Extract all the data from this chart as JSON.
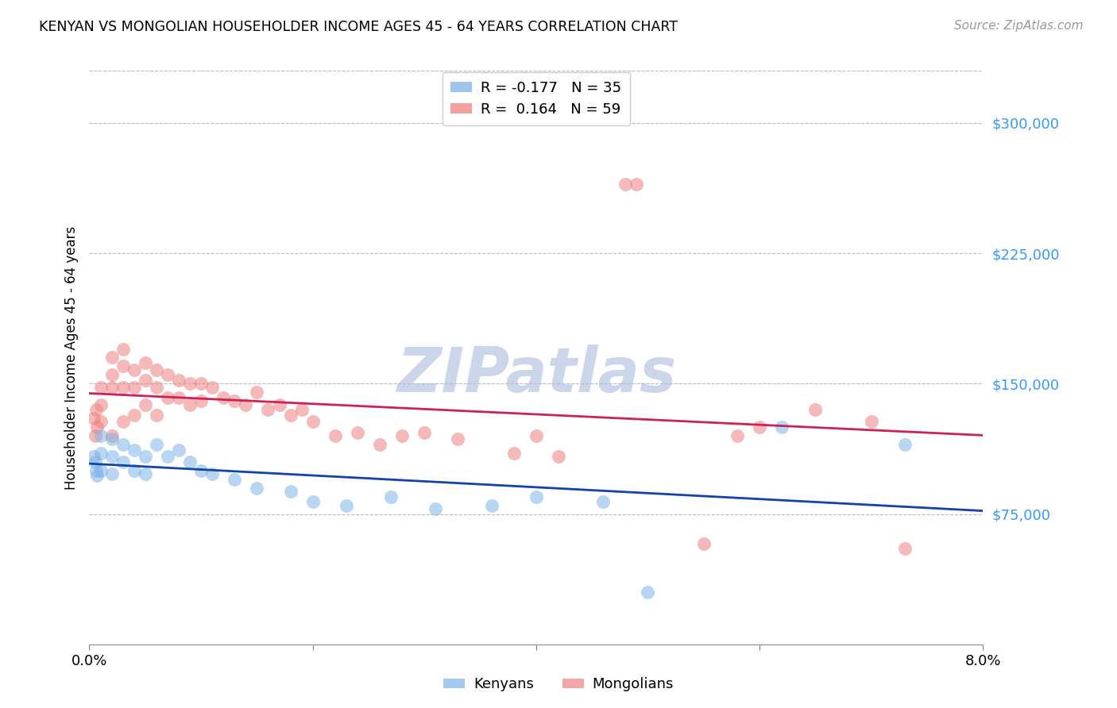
{
  "title": "KENYAN VS MONGOLIAN HOUSEHOLDER INCOME AGES 45 - 64 YEARS CORRELATION CHART",
  "source": "Source: ZipAtlas.com",
  "ylabel": "Householder Income Ages 45 - 64 years",
  "xlim": [
    0.0,
    0.08
  ],
  "ylim": [
    0,
    330000
  ],
  "yticks": [
    75000,
    150000,
    225000,
    300000
  ],
  "ytick_labels": [
    "$75,000",
    "$150,000",
    "$225,000",
    "$300,000"
  ],
  "xticks": [
    0.0,
    0.02,
    0.04,
    0.06,
    0.08
  ],
  "xtick_labels": [
    "0.0%",
    "",
    "",
    "",
    "8.0%"
  ],
  "kenyan_R": -0.177,
  "kenyan_N": 35,
  "mongolian_R": 0.164,
  "mongolian_N": 59,
  "kenyan_color": "#7EB3E8",
  "mongolian_color": "#F08080",
  "kenyan_line_color": "#1144AA",
  "mongolian_line_color": "#CC2255",
  "background_color": "#FFFFFF",
  "watermark": "ZIPatlas",
  "watermark_color": "#AABBDD",
  "kenyan_x": [
    0.0004,
    0.0005,
    0.0006,
    0.0007,
    0.001,
    0.001,
    0.001,
    0.002,
    0.002,
    0.002,
    0.003,
    0.003,
    0.004,
    0.004,
    0.005,
    0.005,
    0.006,
    0.007,
    0.008,
    0.009,
    0.01,
    0.011,
    0.013,
    0.015,
    0.018,
    0.02,
    0.023,
    0.027,
    0.031,
    0.036,
    0.04,
    0.046,
    0.05,
    0.062,
    0.073
  ],
  "kenyan_y": [
    108000,
    105000,
    100000,
    97000,
    120000,
    110000,
    100000,
    118000,
    108000,
    98000,
    115000,
    105000,
    112000,
    100000,
    108000,
    98000,
    115000,
    108000,
    112000,
    105000,
    100000,
    98000,
    95000,
    90000,
    88000,
    82000,
    80000,
    85000,
    78000,
    80000,
    85000,
    82000,
    30000,
    125000,
    115000
  ],
  "mongolian_x": [
    0.0004,
    0.0005,
    0.0006,
    0.0007,
    0.001,
    0.001,
    0.001,
    0.002,
    0.002,
    0.002,
    0.002,
    0.003,
    0.003,
    0.003,
    0.003,
    0.004,
    0.004,
    0.004,
    0.005,
    0.005,
    0.005,
    0.006,
    0.006,
    0.006,
    0.007,
    0.007,
    0.008,
    0.008,
    0.009,
    0.009,
    0.01,
    0.01,
    0.011,
    0.012,
    0.013,
    0.014,
    0.015,
    0.016,
    0.017,
    0.018,
    0.019,
    0.02,
    0.022,
    0.024,
    0.026,
    0.028,
    0.03,
    0.033,
    0.038,
    0.04,
    0.042,
    0.048,
    0.049,
    0.055,
    0.058,
    0.06,
    0.065,
    0.07,
    0.073
  ],
  "mongolian_y": [
    130000,
    120000,
    135000,
    125000,
    148000,
    138000,
    128000,
    165000,
    155000,
    148000,
    120000,
    170000,
    160000,
    148000,
    128000,
    158000,
    148000,
    132000,
    162000,
    152000,
    138000,
    158000,
    148000,
    132000,
    155000,
    142000,
    152000,
    142000,
    150000,
    138000,
    150000,
    140000,
    148000,
    142000,
    140000,
    138000,
    145000,
    135000,
    138000,
    132000,
    135000,
    128000,
    120000,
    122000,
    115000,
    120000,
    122000,
    118000,
    110000,
    120000,
    108000,
    265000,
    265000,
    58000,
    120000,
    125000,
    135000,
    128000,
    55000
  ]
}
